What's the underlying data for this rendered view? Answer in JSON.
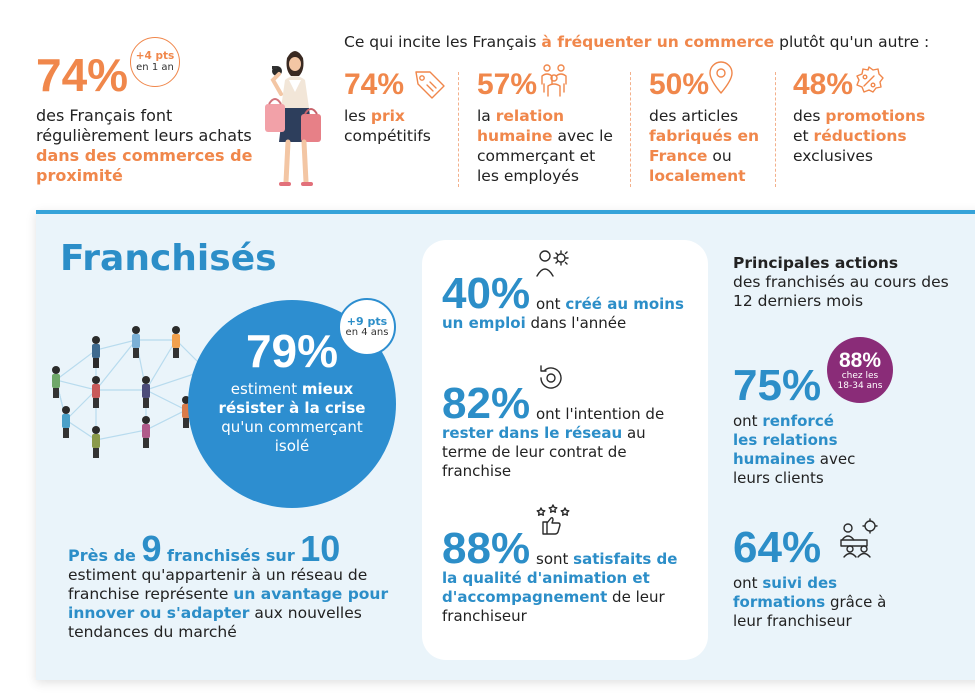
{
  "top": {
    "main_pct": "74%",
    "badge": {
      "value": "+4 pts",
      "period": "en 1 an"
    },
    "desc": {
      "part1": "des Français font régulièrement leurs achats ",
      "highlight": "dans des commerces de proximité"
    },
    "heading": {
      "before": "Ce qui incite les Français ",
      "highlight": "à fréquenter un commerce",
      "after": " plutôt qu'un autre :"
    },
    "stats": [
      {
        "pct": "74%",
        "icon": "price-tag-icon",
        "t1": "les ",
        "h1": "prix",
        "t2": "\ncompétitifs"
      },
      {
        "pct": "57%",
        "icon": "people-group-icon",
        "t1": "la ",
        "h1": "relation humaine",
        "t2": " avec le commerçant et les employés"
      },
      {
        "pct": "50%",
        "icon": "location-pin-icon",
        "t1": "des articles ",
        "h1": "fabriqués en France",
        "t2": " ou ",
        "h2": "localement"
      },
      {
        "pct": "48%",
        "icon": "discount-badge-icon",
        "t1": "des ",
        "h1": "promotions",
        "t2": "\net ",
        "h2": "réductions",
        "t3": "\nexclusives"
      }
    ]
  },
  "panel": {
    "title": "Franchisés",
    "circle": {
      "pct": "79%",
      "t1": "estiment ",
      "h1": "mieux résister à la crise",
      "t2": " qu'un commerçant isolé"
    },
    "circle_badge": {
      "value": "+9 pts",
      "period": "en 4 ans"
    },
    "bottom_left": {
      "pre": "Près de ",
      "num1": "9",
      "mid": " franchisés sur ",
      "num2": "10",
      "t1": "estiment qu'appartenir à un réseau de franchise représente ",
      "h1": "un avantage pour innover ou s'adapter",
      "t2": " aux nouvelles tendances du marché"
    },
    "card": [
      {
        "pct": "40%",
        "t1": " ont ",
        "h1": "créé au moins un emploi",
        "t2": " dans l'année"
      },
      {
        "pct": "82%",
        "t1": " ont l'intention de ",
        "h1": "rester dans le réseau",
        "t2": " au terme de leur contrat de franchise"
      },
      {
        "pct": "88%",
        "t1": " sont ",
        "h1": "satisfaits de la qualité d'animation et d'accompagnement",
        "t2": " de leur franchiseur"
      }
    ],
    "actions": {
      "heading_bold": "Principales actions",
      "heading_rest": "des franchisés au cours des 12 derniers mois",
      "items": [
        {
          "pct": "75%",
          "t1": "ont ",
          "h1": "renforcé les relations humaines",
          "t2": " avec leurs clients"
        },
        {
          "pct": "64%",
          "t1": "ont ",
          "h1": "suivi des formations",
          "t2": " grâce à leur franchiseur"
        }
      ],
      "purple_badge": {
        "value": "88%",
        "label": "chez les 18-34 ans"
      }
    }
  },
  "colors": {
    "orange": "#f0874b",
    "blue": "#2c8ec8",
    "purple": "#8a2c78",
    "panel_bg": "#eaf4fa"
  }
}
